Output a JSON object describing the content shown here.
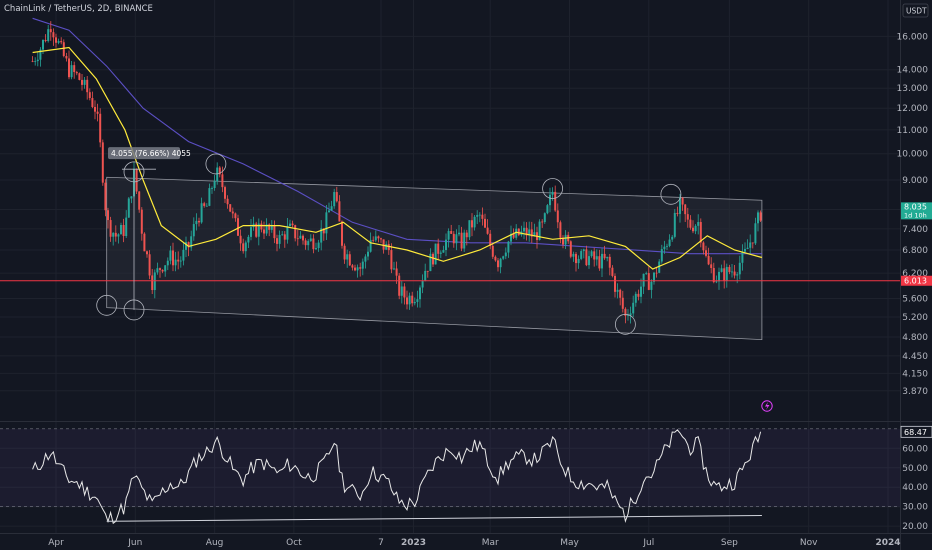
{
  "header": {
    "symbol_line": "ChainLink / TetherUS, 2D, BINANCE",
    "currency": "USDT"
  },
  "colors": {
    "background": "#131722",
    "up": "#26a69a",
    "down": "#ef5350",
    "ema": "#ffeb3b",
    "ma": "#5b4fc4",
    "rsi": "#e8e8e8",
    "hline": "#f23645",
    "channel_fill": "#2a2e39",
    "last_price_bg": "#22ab94",
    "hline_price_bg": "#f23645"
  },
  "chart_data": [
    {
      "type": "line",
      "name": "price",
      "y_scale": "log",
      "ylim": [
        3.7,
        17.5
      ],
      "y_ticks": [
        "16.000",
        "14.000",
        "13.000",
        "12.000",
        "11.000",
        "10.000",
        "9.000",
        "8.000",
        "7.400",
        "6.800",
        "6.200",
        "5.600",
        "5.200",
        "4.800",
        "4.450",
        "4.150",
        "3.870"
      ],
      "x_labels": [
        "Apr",
        "Jun",
        "Aug",
        "Oct",
        "7",
        "2023",
        "Mar",
        "May",
        "Jul",
        "Sep",
        "Nov",
        "2024"
      ],
      "close_path": [
        [
          "2022-03-14",
          14.5
        ],
        [
          "2022-03-21",
          15.4
        ],
        [
          "2022-03-28",
          16.8
        ],
        [
          "2022-04-04",
          15.3
        ],
        [
          "2022-04-11",
          14.0
        ],
        [
          "2022-04-18",
          13.6
        ],
        [
          "2022-04-25",
          12.8
        ],
        [
          "2022-05-02",
          11.9
        ],
        [
          "2022-05-10",
          7.6
        ],
        [
          "2022-05-17",
          7.2
        ],
        [
          "2022-05-24",
          7.4
        ],
        [
          "2022-05-31",
          9.2
        ],
        [
          "2022-06-07",
          7.1
        ],
        [
          "2022-06-14",
          6.0
        ],
        [
          "2022-06-21",
          6.4
        ],
        [
          "2022-06-28",
          6.6
        ],
        [
          "2022-07-05",
          6.5
        ],
        [
          "2022-07-12",
          6.9
        ],
        [
          "2022-07-19",
          7.8
        ],
        [
          "2022-07-26",
          8.1
        ],
        [
          "2022-08-02",
          9.3
        ],
        [
          "2022-08-09",
          8.6
        ],
        [
          "2022-08-16",
          7.6
        ],
        [
          "2022-08-23",
          7.0
        ],
        [
          "2022-08-30",
          7.3
        ],
        [
          "2022-09-06",
          7.5
        ],
        [
          "2022-09-13",
          7.3
        ],
        [
          "2022-09-20",
          7.1
        ],
        [
          "2022-09-27",
          7.4
        ],
        [
          "2022-10-04",
          7.2
        ],
        [
          "2022-10-11",
          7.0
        ],
        [
          "2022-10-18",
          7.1
        ],
        [
          "2022-10-25",
          7.5
        ],
        [
          "2022-11-01",
          8.5
        ],
        [
          "2022-11-08",
          6.8
        ],
        [
          "2022-11-15",
          6.5
        ],
        [
          "2022-11-22",
          6.3
        ],
        [
          "2022-11-29",
          7.1
        ],
        [
          "2022-12-06",
          7.0
        ],
        [
          "2022-12-13",
          6.8
        ],
        [
          "2022-12-20",
          5.8
        ],
        [
          "2022-12-27",
          5.6
        ],
        [
          "2023-01-03",
          5.7
        ],
        [
          "2023-01-10",
          6.3
        ],
        [
          "2023-01-17",
          6.7
        ],
        [
          "2023-01-24",
          7.0
        ],
        [
          "2023-01-31",
          7.2
        ],
        [
          "2023-02-07",
          7.0
        ],
        [
          "2023-02-14",
          7.5
        ],
        [
          "2023-02-21",
          7.8
        ],
        [
          "2023-02-28",
          7.0
        ],
        [
          "2023-03-07",
          6.5
        ],
        [
          "2023-03-14",
          7.0
        ],
        [
          "2023-03-21",
          7.2
        ],
        [
          "2023-03-28",
          7.3
        ],
        [
          "2023-04-04",
          7.2
        ],
        [
          "2023-04-11",
          7.5
        ],
        [
          "2023-04-18",
          8.6
        ],
        [
          "2023-04-25",
          7.2
        ],
        [
          "2023-05-02",
          6.8
        ],
        [
          "2023-05-09",
          6.6
        ],
        [
          "2023-05-16",
          6.6
        ],
        [
          "2023-05-23",
          6.5
        ],
        [
          "2023-05-30",
          6.5
        ],
        [
          "2023-06-06",
          5.8
        ],
        [
          "2023-06-13",
          5.2
        ],
        [
          "2023-06-20",
          5.6
        ],
        [
          "2023-06-27",
          6.0
        ],
        [
          "2023-07-04",
          6.0
        ],
        [
          "2023-07-11",
          6.7
        ],
        [
          "2023-07-18",
          7.3
        ],
        [
          "2023-07-25",
          8.1
        ],
        [
          "2023-08-01",
          7.5
        ],
        [
          "2023-08-08",
          7.6
        ],
        [
          "2023-08-15",
          6.4
        ],
        [
          "2023-08-22",
          6.1
        ],
        [
          "2023-08-29",
          6.2
        ],
        [
          "2023-09-05",
          6.3
        ],
        [
          "2023-09-12",
          6.6
        ],
        [
          "2023-09-19",
          7.2
        ],
        [
          "2023-09-26",
          8.0
        ]
      ],
      "ema_path": [
        [
          "2022-03-14",
          15.0
        ],
        [
          "2022-04-11",
          15.3
        ],
        [
          "2022-05-02",
          13.5
        ],
        [
          "2022-05-24",
          11.0
        ],
        [
          "2022-06-07",
          9.0
        ],
        [
          "2022-06-21",
          7.5
        ],
        [
          "2022-07-12",
          6.9
        ],
        [
          "2022-08-02",
          7.1
        ],
        [
          "2022-08-23",
          7.5
        ],
        [
          "2022-09-20",
          7.5
        ],
        [
          "2022-10-18",
          7.3
        ],
        [
          "2022-11-08",
          7.6
        ],
        [
          "2022-11-29",
          7.0
        ],
        [
          "2022-12-27",
          6.8
        ],
        [
          "2023-01-24",
          6.5
        ],
        [
          "2023-02-21",
          6.8
        ],
        [
          "2023-03-21",
          7.3
        ],
        [
          "2023-04-18",
          7.1
        ],
        [
          "2023-05-16",
          7.2
        ],
        [
          "2023-06-13",
          6.9
        ],
        [
          "2023-07-04",
          6.3
        ],
        [
          "2023-07-25",
          6.6
        ],
        [
          "2023-08-15",
          7.2
        ],
        [
          "2023-09-05",
          6.8
        ],
        [
          "2023-09-26",
          6.6
        ]
      ],
      "ma_path": [
        [
          "2022-03-14",
          17.2
        ],
        [
          "2022-04-11",
          16.4
        ],
        [
          "2022-05-10",
          14.2
        ],
        [
          "2022-06-07",
          12.0
        ],
        [
          "2022-07-12",
          10.5
        ],
        [
          "2022-08-23",
          9.6
        ],
        [
          "2022-10-04",
          8.6
        ],
        [
          "2022-11-15",
          7.6
        ],
        [
          "2022-12-27",
          7.1
        ],
        [
          "2023-02-14",
          7.0
        ],
        [
          "2023-03-28",
          7.0
        ],
        [
          "2023-05-09",
          6.9
        ],
        [
          "2023-06-20",
          6.8
        ],
        [
          "2023-08-01",
          6.7
        ],
        [
          "2023-09-12",
          6.7
        ],
        [
          "2023-09-26",
          6.7
        ]
      ],
      "channel": {
        "upper": [
          [
            "2022-05-10",
            9.1
          ],
          [
            "2023-09-26",
            8.3
          ]
        ],
        "lower": [
          [
            "2022-05-10",
            5.4
          ],
          [
            "2023-09-26",
            4.75
          ]
        ]
      },
      "circles": [
        [
          "2022-05-10",
          5.45
        ],
        [
          "2022-05-31",
          5.35
        ],
        [
          "2022-05-31",
          9.3
        ],
        [
          "2022-08-02",
          9.6
        ],
        [
          "2023-04-18",
          8.7
        ],
        [
          "2023-06-13",
          5.05
        ],
        [
          "2023-07-18",
          8.5
        ]
      ],
      "hline_value": 6.013,
      "last_price": {
        "value": "8.035",
        "countdown": "1d 10h"
      },
      "hline_price": "6.013",
      "measure_label": "4.055 (76.66%) 4055"
    },
    {
      "type": "line",
      "name": "rsi",
      "ylim": [
        17,
        73
      ],
      "y_ticks": [
        "60.00",
        "50.00",
        "40.00",
        "30.00",
        "20.00"
      ],
      "band": [
        30,
        70
      ],
      "last_value": "68.47",
      "values": [
        [
          "2022-03-14",
          48
        ],
        [
          "2022-03-21",
          53
        ],
        [
          "2022-03-28",
          58
        ],
        [
          "2022-04-04",
          50
        ],
        [
          "2022-04-11",
          44
        ],
        [
          "2022-04-18",
          42
        ],
        [
          "2022-04-25",
          38
        ],
        [
          "2022-05-02",
          35
        ],
        [
          "2022-05-10",
          23
        ],
        [
          "2022-05-17",
          26
        ],
        [
          "2022-05-24",
          30
        ],
        [
          "2022-05-31",
          46
        ],
        [
          "2022-06-07",
          38
        ],
        [
          "2022-06-14",
          31
        ],
        [
          "2022-06-21",
          37
        ],
        [
          "2022-06-28",
          42
        ],
        [
          "2022-07-05",
          40
        ],
        [
          "2022-07-12",
          47
        ],
        [
          "2022-07-19",
          55
        ],
        [
          "2022-07-26",
          58
        ],
        [
          "2022-08-02",
          64
        ],
        [
          "2022-08-09",
          57
        ],
        [
          "2022-08-16",
          48
        ],
        [
          "2022-08-23",
          44
        ],
        [
          "2022-08-30",
          50
        ],
        [
          "2022-09-06",
          53
        ],
        [
          "2022-09-13",
          50
        ],
        [
          "2022-09-20",
          47
        ],
        [
          "2022-09-27",
          52
        ],
        [
          "2022-10-04",
          49
        ],
        [
          "2022-10-11",
          45
        ],
        [
          "2022-10-18",
          47
        ],
        [
          "2022-10-25",
          53
        ],
        [
          "2022-11-01",
          64
        ],
        [
          "2022-11-08",
          42
        ],
        [
          "2022-11-15",
          38
        ],
        [
          "2022-11-22",
          36
        ],
        [
          "2022-11-29",
          48
        ],
        [
          "2022-12-06",
          46
        ],
        [
          "2022-12-13",
          42
        ],
        [
          "2022-12-20",
          33
        ],
        [
          "2022-12-27",
          31
        ],
        [
          "2023-01-03",
          33
        ],
        [
          "2023-01-10",
          44
        ],
        [
          "2023-01-17",
          52
        ],
        [
          "2023-01-24",
          57
        ],
        [
          "2023-01-31",
          60
        ],
        [
          "2023-02-07",
          55
        ],
        [
          "2023-02-14",
          60
        ],
        [
          "2023-02-21",
          62
        ],
        [
          "2023-02-28",
          52
        ],
        [
          "2023-03-07",
          45
        ],
        [
          "2023-03-14",
          52
        ],
        [
          "2023-03-21",
          55
        ],
        [
          "2023-03-28",
          56
        ],
        [
          "2023-04-04",
          54
        ],
        [
          "2023-04-11",
          58
        ],
        [
          "2023-04-18",
          64
        ],
        [
          "2023-04-25",
          52
        ],
        [
          "2023-05-02",
          45
        ],
        [
          "2023-05-09",
          42
        ],
        [
          "2023-05-16",
          42
        ],
        [
          "2023-05-23",
          40
        ],
        [
          "2023-05-30",
          40
        ],
        [
          "2023-06-06",
          32
        ],
        [
          "2023-06-13",
          26
        ],
        [
          "2023-06-20",
          34
        ],
        [
          "2023-06-27",
          45
        ],
        [
          "2023-07-04",
          47
        ],
        [
          "2023-07-11",
          56
        ],
        [
          "2023-07-18",
          64
        ],
        [
          "2023-07-25",
          69
        ],
        [
          "2023-08-01",
          60
        ],
        [
          "2023-08-08",
          62
        ],
        [
          "2023-08-15",
          46
        ],
        [
          "2023-08-22",
          40
        ],
        [
          "2023-08-29",
          41
        ],
        [
          "2023-09-05",
          43
        ],
        [
          "2023-09-12",
          50
        ],
        [
          "2023-09-19",
          60
        ],
        [
          "2023-09-26",
          68.5
        ]
      ],
      "trendline": [
        [
          "2022-05-10",
          22.5
        ],
        [
          "2023-09-26",
          25.5
        ]
      ]
    }
  ]
}
